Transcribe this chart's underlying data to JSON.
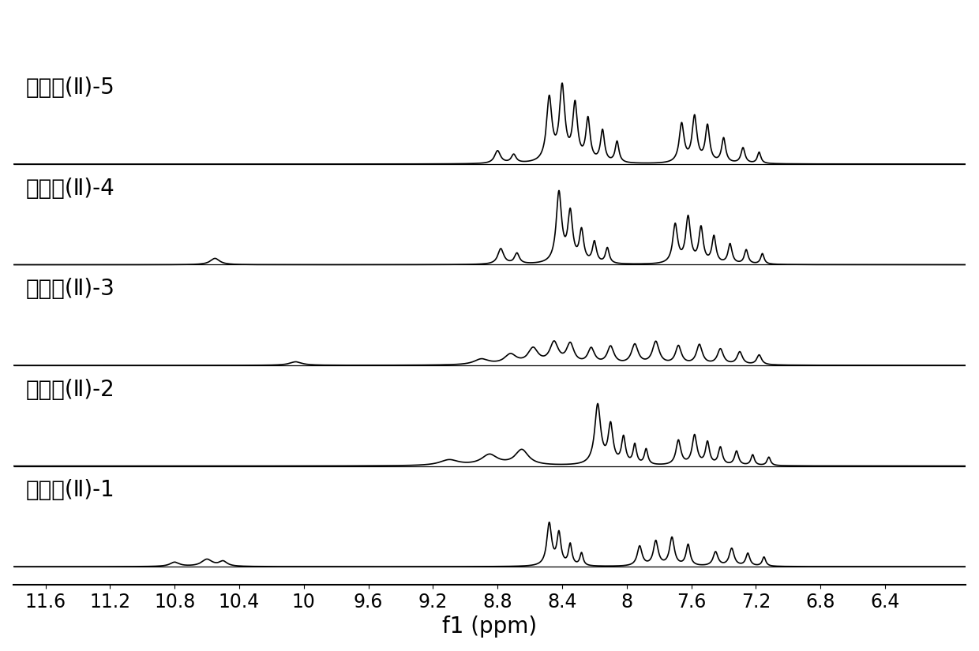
{
  "labels": [
    "共聚物(Ⅱ)-1",
    "共聚物(Ⅱ)-2",
    "共聚物(Ⅱ)-3",
    "共聚物(Ⅱ)-4",
    "共聚物(Ⅱ)-5"
  ],
  "xlabel": "f1 (ppm)",
  "xmin": 5.9,
  "xmax": 11.8,
  "xticks": [
    11.6,
    11.2,
    10.8,
    10.4,
    10.0,
    9.6,
    9.2,
    8.8,
    8.4,
    8.0,
    7.6,
    7.2,
    6.8,
    6.4
  ],
  "background_color": "#ffffff",
  "line_color": "#000000",
  "label_fontsize": 20,
  "xlabel_fontsize": 20,
  "tick_fontsize": 17
}
